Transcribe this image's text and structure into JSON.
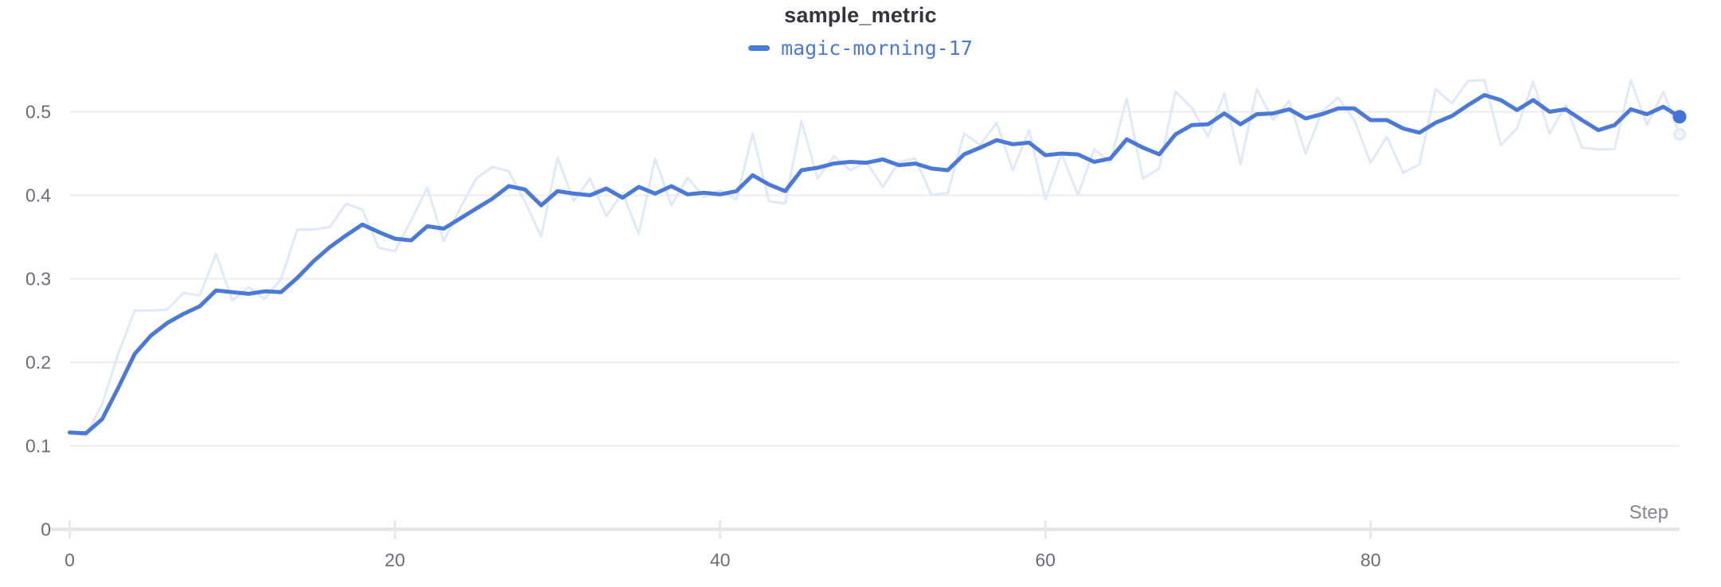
{
  "chart": {
    "title": "sample_metric",
    "legend_label": "magic-morning-17"
  },
  "axes": {
    "x_title": "Step",
    "x_tick_labels": [
      "0",
      "20",
      "40",
      "60",
      "80"
    ],
    "y_tick_labels": [
      "0",
      "0.1",
      "0.2",
      "0.3",
      "0.4",
      "0.5"
    ]
  },
  "colors": {
    "accent_line": "#4b79d8",
    "accent_dot": "#4472d8",
    "faint_line": "#dfe9fa",
    "faint_dot_fill": "#f3f7fd",
    "gridline": "#ededf0",
    "axis_line": "#e5e5e8",
    "tick_mark": "#e8e8eb",
    "tick_text": "#6b6c74",
    "title_text": "#33343d",
    "step_text": "#85868e"
  },
  "chart_data": {
    "type": "line",
    "title": "sample_metric",
    "xlabel": "Step",
    "ylabel": "",
    "x_ticks": [
      0,
      20,
      40,
      60,
      80
    ],
    "y_ticks": [
      0,
      0.1,
      0.2,
      0.3,
      0.4,
      0.5
    ],
    "xlim": [
      0,
      99
    ],
    "ylim": [
      0,
      0.55
    ],
    "grid": "horizontal",
    "legend_position": "top-center",
    "x_start": 0,
    "x_step": 1,
    "series": [
      {
        "name": "magic-morning-17 (original)",
        "role": "original-unsmoothed",
        "color": "#dfe9fa",
        "values": [
          0.116,
          0.112,
          0.15,
          0.211,
          0.262,
          0.262,
          0.263,
          0.283,
          0.28,
          0.33,
          0.274,
          0.29,
          0.276,
          0.3,
          0.359,
          0.359,
          0.362,
          0.39,
          0.383,
          0.337,
          0.333,
          0.37,
          0.409,
          0.345,
          0.384,
          0.42,
          0.434,
          0.429,
          0.392,
          0.351,
          0.445,
          0.393,
          0.42,
          0.375,
          0.403,
          0.354,
          0.444,
          0.388,
          0.421,
          0.398,
          0.406,
          0.395,
          0.474,
          0.393,
          0.39,
          0.489,
          0.42,
          0.447,
          0.43,
          0.44,
          0.41,
          0.44,
          0.444,
          0.4,
          0.403,
          0.474,
          0.46,
          0.487,
          0.43,
          0.478,
          0.395,
          0.45,
          0.4,
          0.455,
          0.44,
          0.516,
          0.42,
          0.432,
          0.524,
          0.505,
          0.47,
          0.522,
          0.437,
          0.527,
          0.49,
          0.513,
          0.45,
          0.5,
          0.517,
          0.49,
          0.439,
          0.47,
          0.427,
          0.437,
          0.527,
          0.51,
          0.537,
          0.538,
          0.46,
          0.48,
          0.536,
          0.474,
          0.508,
          0.457,
          0.455,
          0.455,
          0.538,
          0.484,
          0.524,
          0.473
        ]
      },
      {
        "name": "magic-morning-17",
        "role": "smoothed",
        "color": "#4b79d8",
        "values": [
          0.116,
          0.115,
          0.132,
          0.17,
          0.21,
          0.232,
          0.247,
          0.258,
          0.267,
          0.286,
          0.284,
          0.282,
          0.285,
          0.284,
          0.301,
          0.321,
          0.338,
          0.352,
          0.365,
          0.356,
          0.348,
          0.346,
          0.363,
          0.36,
          0.372,
          0.384,
          0.396,
          0.411,
          0.407,
          0.388,
          0.405,
          0.402,
          0.4,
          0.408,
          0.397,
          0.41,
          0.402,
          0.411,
          0.401,
          0.403,
          0.401,
          0.405,
          0.424,
          0.413,
          0.405,
          0.43,
          0.433,
          0.438,
          0.44,
          0.439,
          0.443,
          0.436,
          0.438,
          0.432,
          0.43,
          0.449,
          0.457,
          0.466,
          0.461,
          0.463,
          0.448,
          0.45,
          0.449,
          0.44,
          0.444,
          0.467,
          0.457,
          0.449,
          0.473,
          0.484,
          0.485,
          0.498,
          0.485,
          0.497,
          0.498,
          0.503,
          0.492,
          0.497,
          0.504,
          0.504,
          0.49,
          0.49,
          0.48,
          0.475,
          0.487,
          0.495,
          0.508,
          0.52,
          0.514,
          0.502,
          0.514,
          0.5,
          0.503,
          0.49,
          0.478,
          0.484,
          0.503,
          0.497,
          0.506,
          0.494
        ]
      }
    ]
  }
}
